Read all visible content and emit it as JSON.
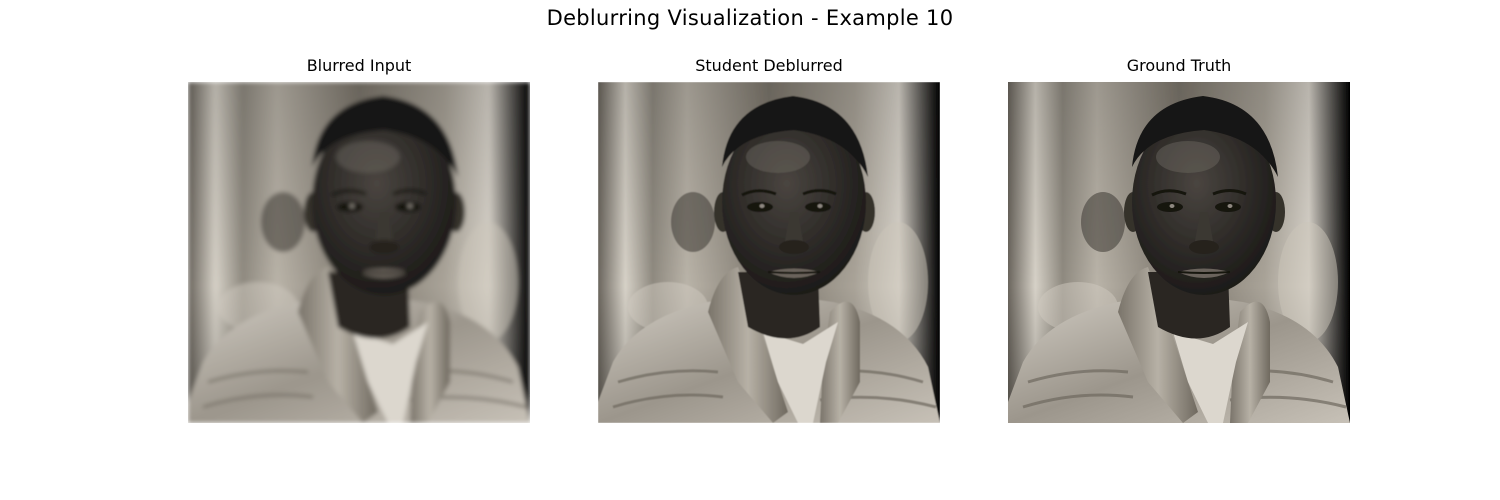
{
  "figure": {
    "title": "Deblurring Visualization - Example 10"
  },
  "panels": [
    {
      "title": "Blurred Input",
      "image": "portrait-photo-blurred"
    },
    {
      "title": "Student Deblurred",
      "image": "portrait-photo-deblurred"
    },
    {
      "title": "Ground Truth",
      "image": "portrait-photo-ground-truth"
    }
  ]
}
